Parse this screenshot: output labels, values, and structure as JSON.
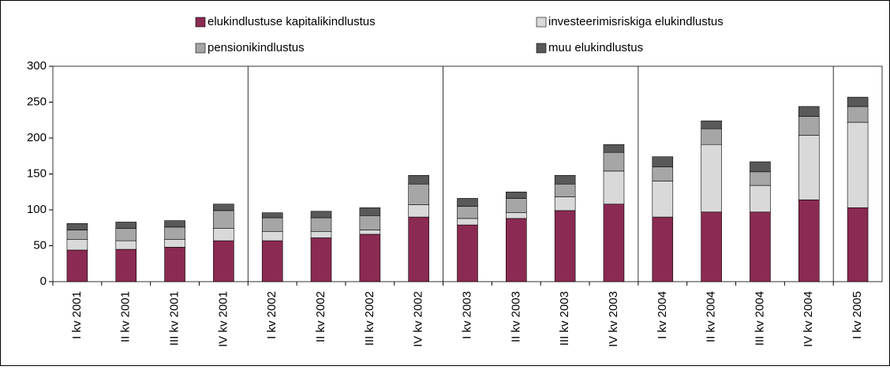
{
  "chart_data": {
    "type": "stacked_bar",
    "categories": [
      "I kv 2001",
      "II kv 2001",
      "III kv 2001",
      "IV kv 2001",
      "I kv 2002",
      "II kv 2002",
      "III kv 2002",
      "IV kv 2002",
      "I kv 2003",
      "II kv 2003",
      "III kv 2003",
      "IV kv 2003",
      "I kv 2004",
      "II kv 2004",
      "III kv 2004",
      "IV kv 2004",
      "I kv 2005"
    ],
    "series": [
      {
        "name": "elukindlustuse kapitalikindlustus",
        "color": "#8b2a52",
        "values": [
          44,
          45,
          48,
          57,
          57,
          61,
          66,
          90,
          79,
          88,
          99,
          108,
          90,
          97,
          97,
          114,
          103
        ]
      },
      {
        "name": "investeerimisriskiga elukindlustus",
        "color": "#d9d9d9",
        "values": [
          15,
          12,
          11,
          17,
          13,
          9,
          6,
          17,
          9,
          8,
          19,
          46,
          50,
          94,
          37,
          90,
          119
        ]
      },
      {
        "name": "pensionikindlustus",
        "color": "#a6a6a6",
        "values": [
          13,
          17,
          17,
          25,
          19,
          19,
          20,
          29,
          17,
          20,
          18,
          26,
          20,
          22,
          19,
          26,
          22
        ]
      },
      {
        "name": "muu elukindlustus",
        "color": "#595959",
        "values": [
          9,
          9,
          9,
          9,
          7,
          9,
          11,
          12,
          11,
          9,
          12,
          11,
          14,
          11,
          14,
          14,
          13
        ]
      }
    ],
    "ylim": [
      0,
      300
    ],
    "yticks": [
      0,
      50,
      100,
      150,
      200,
      250,
      300
    ],
    "grid": false
  }
}
